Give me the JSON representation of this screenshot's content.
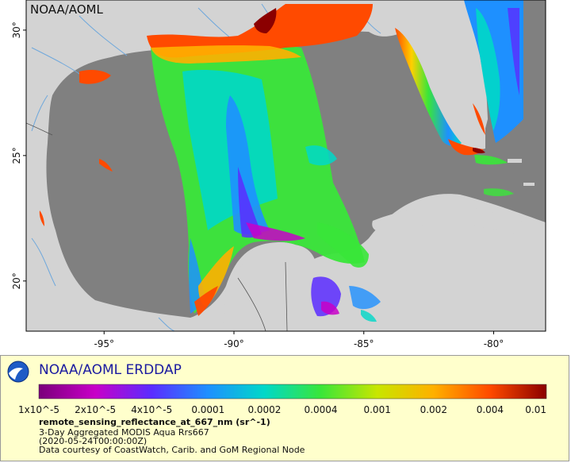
{
  "map": {
    "watermark": "NOAA/AOML",
    "x_ticks": [
      {
        "value": -95,
        "label": "-95°"
      },
      {
        "value": -90,
        "label": "-90°"
      },
      {
        "value": -85,
        "label": "-85°"
      },
      {
        "value": -80,
        "label": "-80°"
      }
    ],
    "y_ticks": [
      {
        "value": 30,
        "label": "30°"
      },
      {
        "value": 25,
        "label": "25°"
      },
      {
        "value": 20,
        "label": "20°"
      }
    ],
    "lon_range": [
      -98,
      -78
    ],
    "lat_range": [
      18,
      31.2
    ],
    "colors": {
      "land": "#d3d3d3",
      "nodata_water": "#808080",
      "rivers": "#6fa8dc"
    }
  },
  "legend": {
    "title": "NOAA/AOML ERDDAP",
    "colorbar_ticks": [
      "1x10^-5",
      "2x10^-5",
      "4x10^-5",
      "0.0001",
      "0.0002",
      "0.0004",
      "0.001",
      "0.002",
      "0.004",
      "0.01"
    ],
    "colorbar_colors": [
      "#7a007a",
      "#c800c8",
      "#5a2cff",
      "#1e90ff",
      "#00d8c8",
      "#39e639",
      "#c8e600",
      "#ffb000",
      "#ff4a00",
      "#8b0000"
    ],
    "variable": "remote_sensing_reflectance_at_667_nm (sr^-1)",
    "line1": "3-Day Aggregated MODIS Aqua Rrs667",
    "line2": "(2020-05-24T00:00:00Z)",
    "line3": "Data courtesy of CoastWatch, Carib. and GoM Regional Node"
  }
}
